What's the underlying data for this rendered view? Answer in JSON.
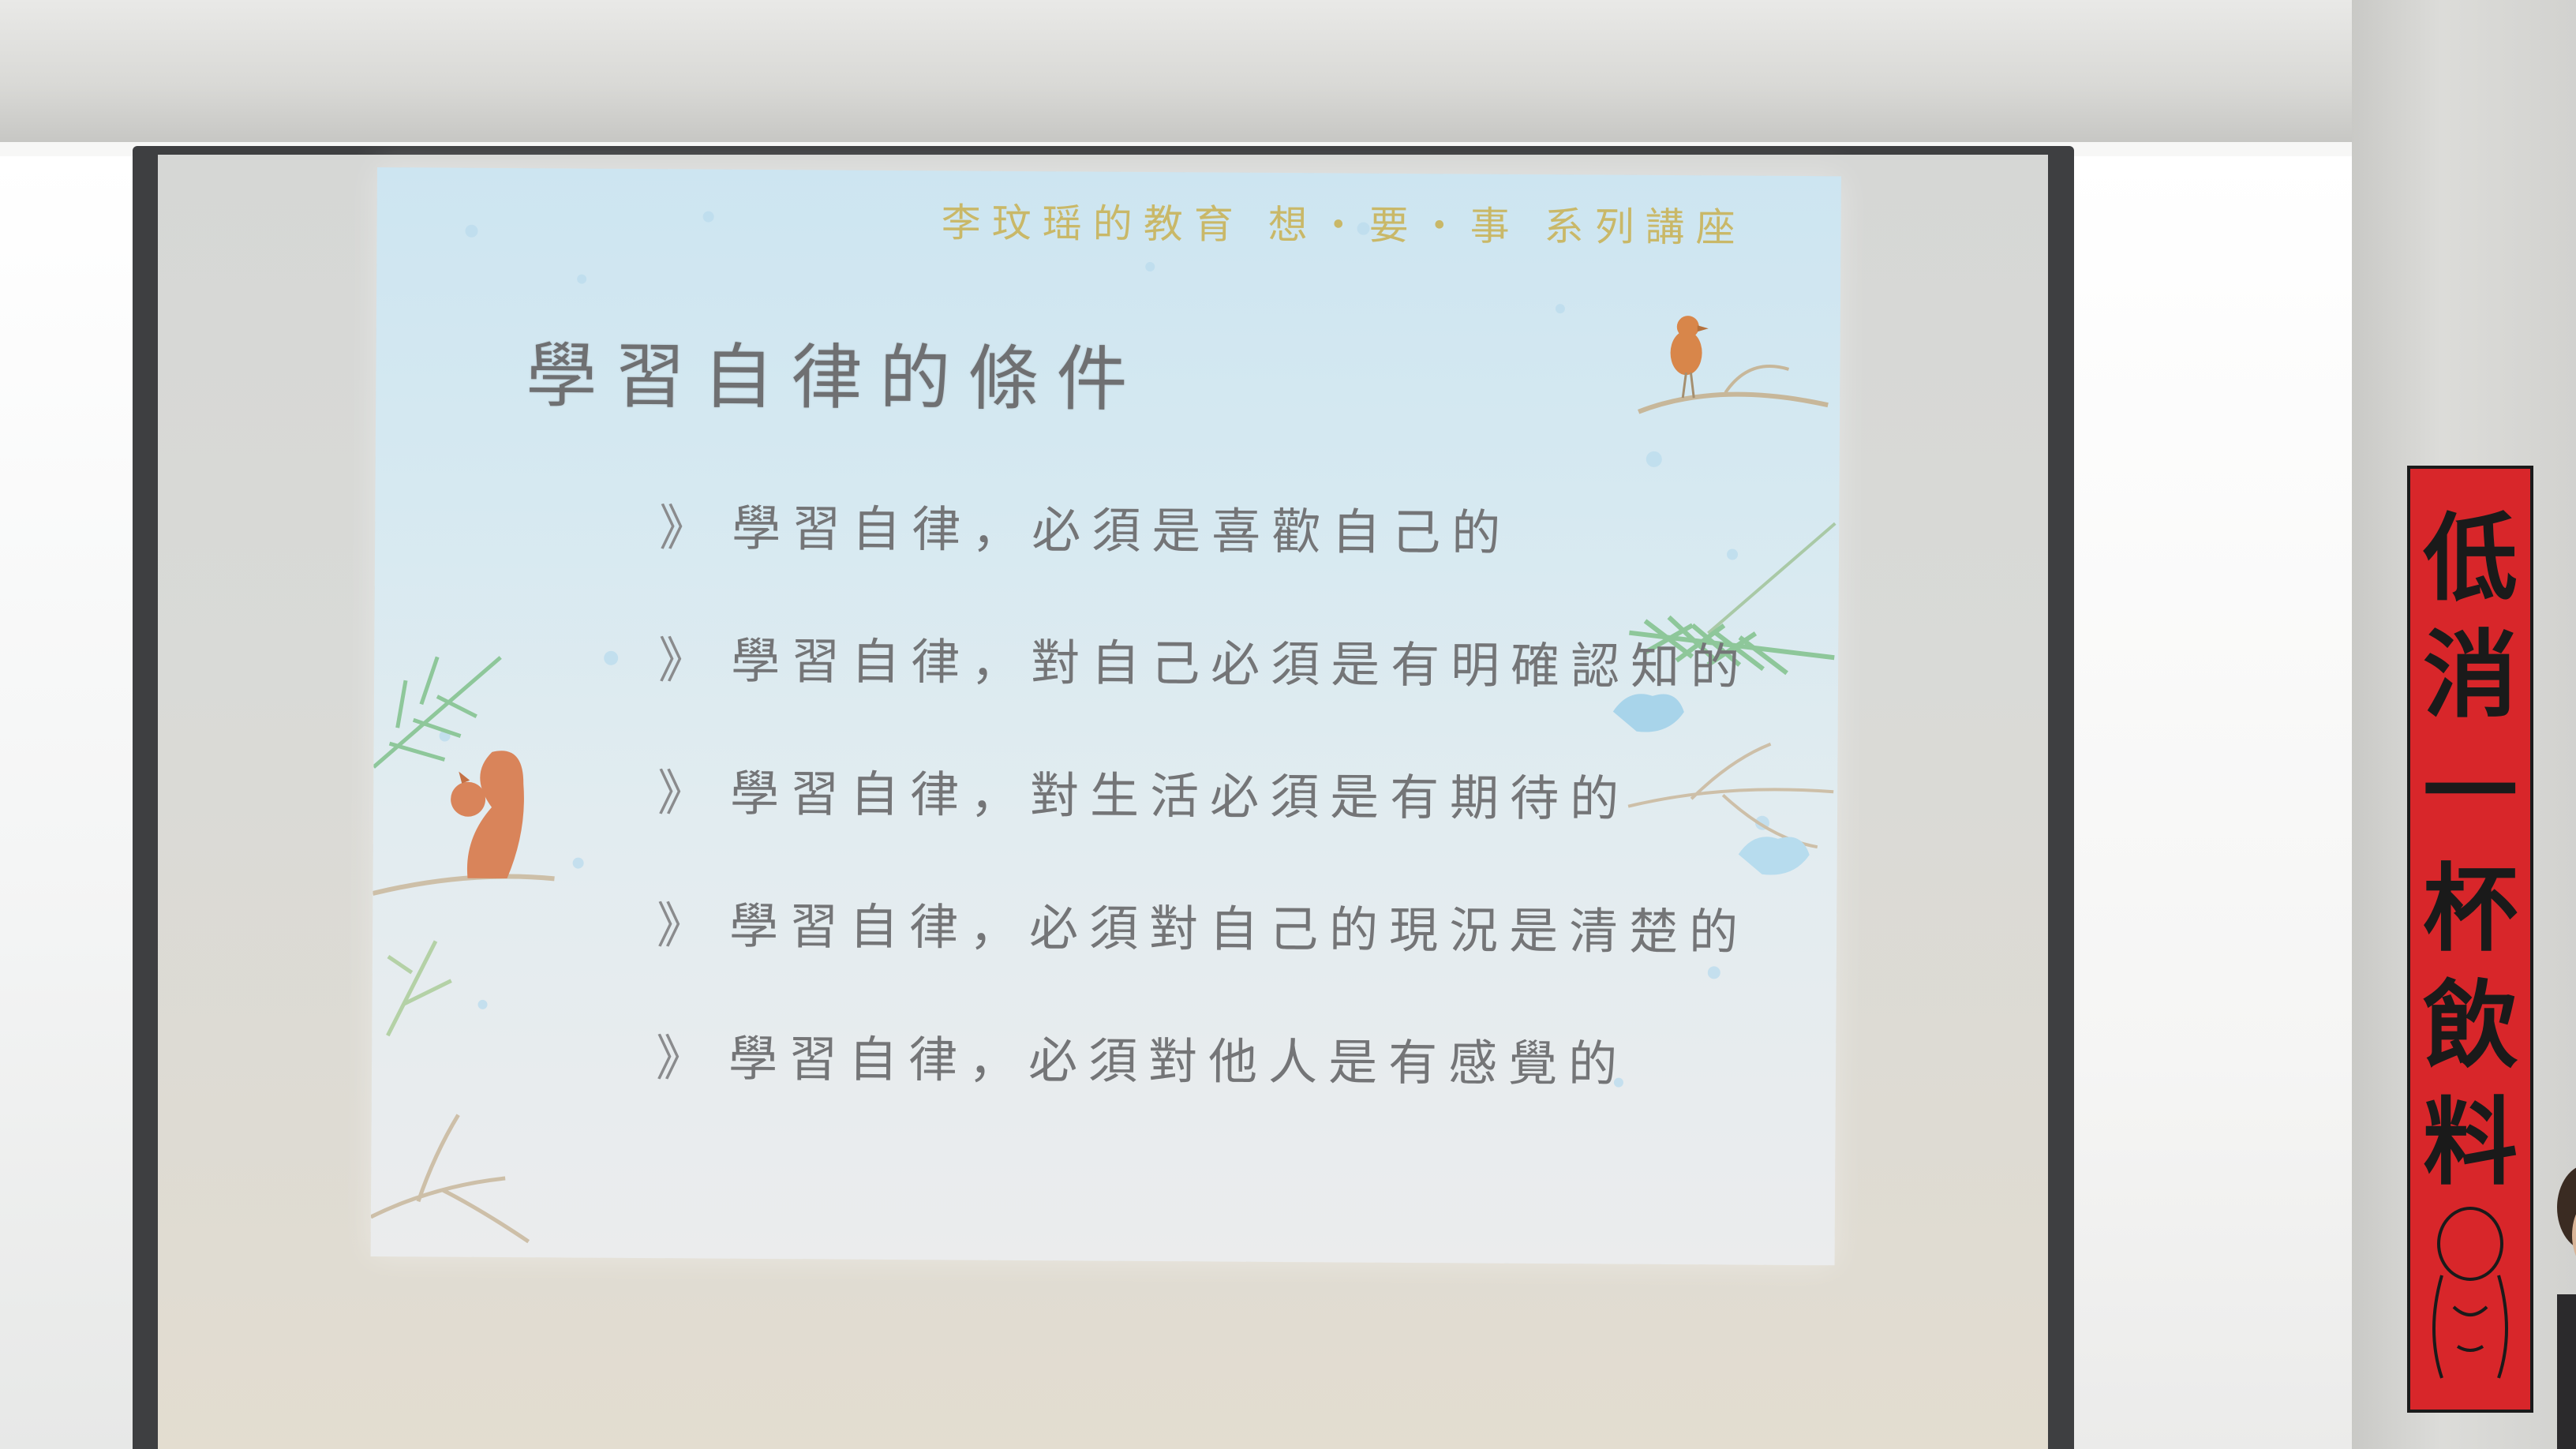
{
  "slide": {
    "header": "李玟瑶的教育 想・要・事 系列講座",
    "title": "學習自律的條件",
    "bullet_marker": "》",
    "bullets": [
      "學習自律，必須是喜歡自己的",
      "學習自律，對自己必須是有明確認知的",
      "學習自律，對生活必須是有期待的",
      "學習自律，必須對自己的現況是清楚的",
      "學習自律，必須對他人是有感覺的"
    ],
    "decorations": [
      "bird-icon",
      "squirrel-icon",
      "pine-branch-icon",
      "twig-icon",
      "snowflake-icon"
    ]
  },
  "banner": {
    "characters": [
      "低",
      "消",
      "一",
      "杯",
      "飲",
      "料"
    ],
    "color": "#d8262a"
  },
  "colors": {
    "slide_background": "#d6e9f1",
    "slide_text": "#747577",
    "header_text": "#c9b45a",
    "screen_frame": "#3e3f41"
  }
}
